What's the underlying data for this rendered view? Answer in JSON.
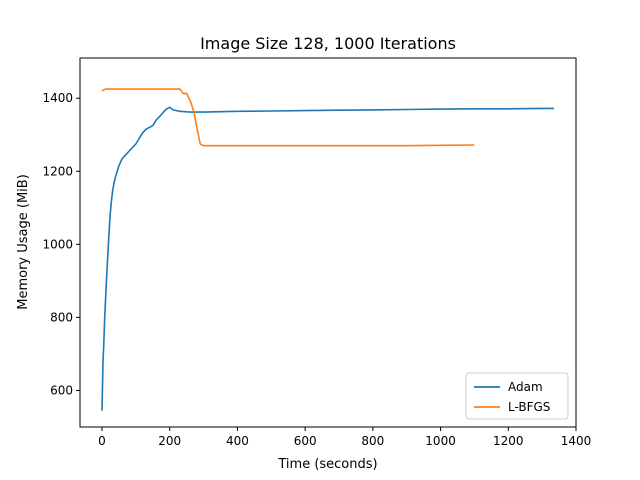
{
  "chart_data": {
    "type": "line",
    "title": "Image Size 128, 1000 Iterations",
    "xlabel": "Time (seconds)",
    "ylabel": "Memory Usage (MiB)",
    "xlim": [
      -65,
      1400
    ],
    "ylim": [
      500,
      1510
    ],
    "xticks": [
      0,
      200,
      400,
      600,
      800,
      1000,
      1200,
      1400
    ],
    "yticks": [
      600,
      800,
      1000,
      1200,
      1400
    ],
    "legend_position": "lower-right",
    "series": [
      {
        "name": "Adam",
        "color": "#1f77b4",
        "x": [
          0,
          3,
          5,
          8,
          12,
          16,
          20,
          24,
          28,
          32,
          36,
          40,
          45,
          50,
          55,
          60,
          70,
          80,
          90,
          100,
          110,
          120,
          130,
          140,
          150,
          160,
          170,
          180,
          190,
          200,
          210,
          220,
          230,
          260,
          300,
          350,
          400,
          500,
          600,
          700,
          800,
          900,
          1000,
          1100,
          1200,
          1300,
          1335
        ],
        "y": [
          545,
          680,
          720,
          800,
          880,
          950,
          1020,
          1080,
          1120,
          1150,
          1170,
          1185,
          1200,
          1215,
          1225,
          1235,
          1245,
          1255,
          1265,
          1275,
          1290,
          1305,
          1315,
          1320,
          1325,
          1340,
          1350,
          1360,
          1370,
          1375,
          1368,
          1366,
          1364,
          1362,
          1362,
          1363,
          1364,
          1365,
          1366,
          1367,
          1368,
          1369,
          1370,
          1371,
          1371,
          1372,
          1372
        ]
      },
      {
        "name": "L-BFGS",
        "color": "#ff7f0e",
        "x": [
          0,
          10,
          30,
          60,
          100,
          150,
          200,
          230,
          240,
          250,
          262,
          272,
          280,
          290,
          300,
          350,
          400,
          500,
          600,
          700,
          800,
          900,
          1000,
          1100
        ],
        "y": [
          1420,
          1425,
          1425,
          1425,
          1425,
          1425,
          1425,
          1425,
          1413,
          1413,
          1390,
          1360,
          1320,
          1275,
          1270,
          1270,
          1270,
          1270,
          1270,
          1270,
          1270,
          1270,
          1271,
          1272
        ]
      }
    ]
  }
}
